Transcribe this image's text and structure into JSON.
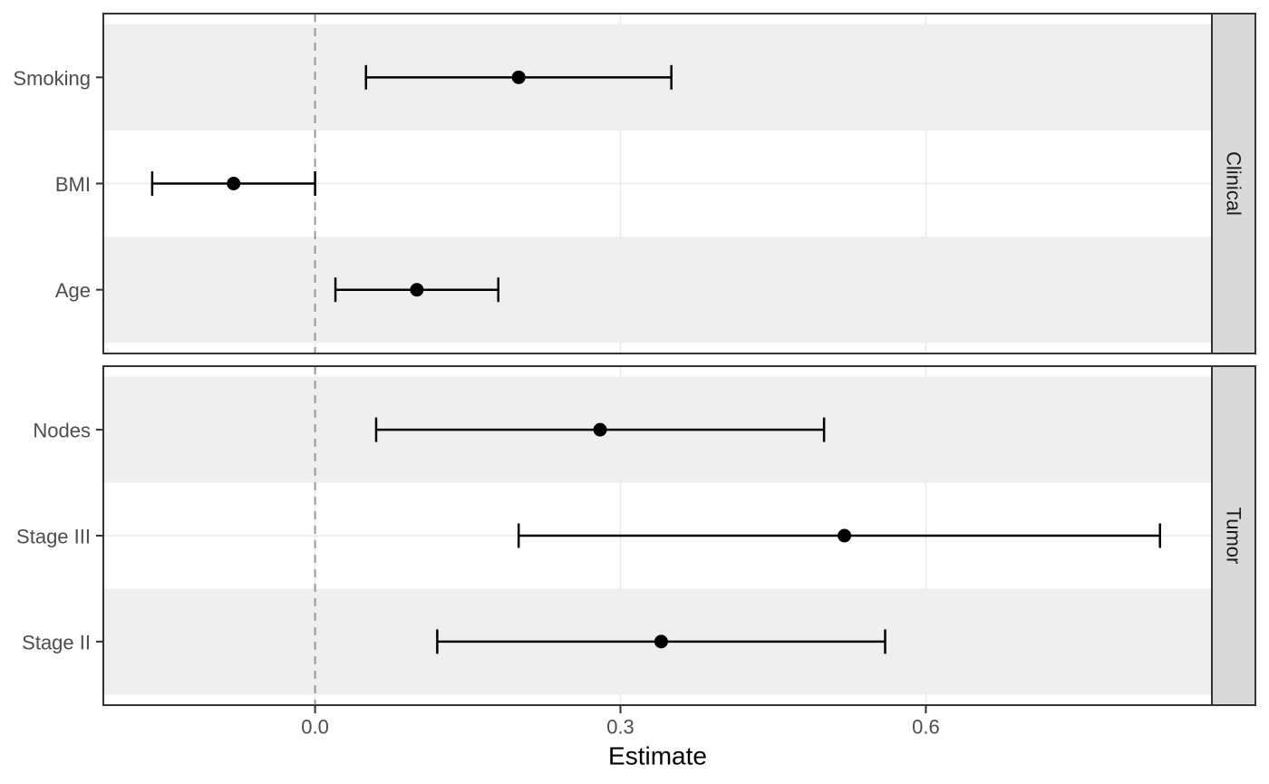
{
  "chart_data": {
    "type": "scatter",
    "subtype": "horizontal-forest-plot-with-error-bars",
    "title": "",
    "xlabel": "Estimate",
    "ylabel": "",
    "xlim": [
      -0.208,
      0.881
    ],
    "x_ticks": [
      0,
      0.3,
      0.6
    ],
    "x_tick_labels": [
      "0.0",
      "0.3",
      "0.6"
    ],
    "reference_line_x": 0,
    "grid": true,
    "legend": false,
    "facet_strip_position": "right",
    "facets": [
      {
        "label": "Clinical",
        "rows": [
          {
            "label": "Smoking",
            "estimate": 0.2,
            "ci_low": 0.05,
            "ci_high": 0.35
          },
          {
            "label": "BMI",
            "estimate": -0.08,
            "ci_low": -0.16,
            "ci_high": 0.0
          },
          {
            "label": "Age",
            "estimate": 0.1,
            "ci_low": 0.02,
            "ci_high": 0.18
          }
        ]
      },
      {
        "label": "Tumor",
        "rows": [
          {
            "label": "Nodes",
            "estimate": 0.28,
            "ci_low": 0.06,
            "ci_high": 0.5
          },
          {
            "label": "Stage III",
            "estimate": 0.52,
            "ci_low": 0.2,
            "ci_high": 0.83
          },
          {
            "label": "Stage II",
            "estimate": 0.34,
            "ci_low": 0.12,
            "ci_high": 0.56
          }
        ]
      }
    ],
    "colors": {
      "background": "#FFFFFF",
      "point": "#000000",
      "errorbar": "#000000",
      "band": "#EFEFEF",
      "gridline": "#E9E9E9",
      "panel_border": "#333333",
      "strip_fill": "#D9D9D9",
      "strip_text": "#1A1A1A",
      "axis_text": "#4D4D4D",
      "axis_title": "#000000",
      "reference_line": "#999999"
    }
  }
}
